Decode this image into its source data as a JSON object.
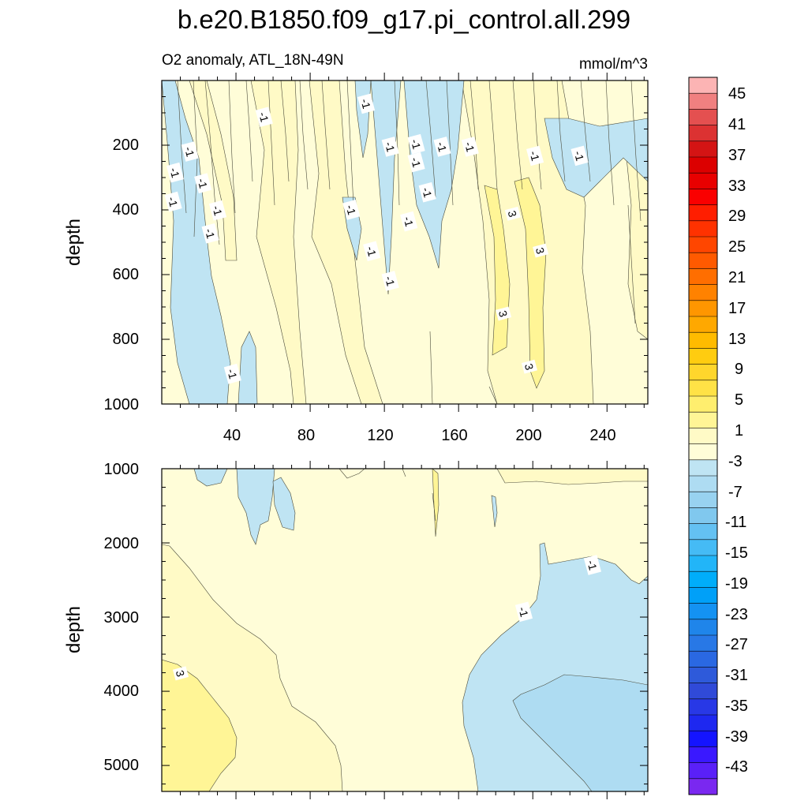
{
  "chart_data": {
    "type": "contour",
    "title": "b.e20.B1850.f09_g17.pi_control.all.299",
    "subtitle": "O2 anomaly, ATL_18N-49N",
    "units": "mmol/m^3",
    "panels": [
      {
        "name": "upper",
        "ylabel": "depth",
        "xlim": [
          0,
          262
        ],
        "ylim": [
          0,
          1000
        ],
        "y_inverted": true,
        "xticks": [
          "40",
          "80",
          "120",
          "160",
          "200",
          "240"
        ],
        "yticks": [
          "200",
          "400",
          "600",
          "800",
          "1000"
        ],
        "contour_labels": [
          {
            "text": "-1",
            "x": 55,
            "y": 113
          },
          {
            "text": "-1",
            "x": 110,
            "y": 72
          },
          {
            "text": "-1",
            "x": 15,
            "y": 220
          },
          {
            "text": "-1",
            "x": 7,
            "y": 285
          },
          {
            "text": "-1",
            "x": 22,
            "y": 318
          },
          {
            "text": "-1",
            "x": 6,
            "y": 375
          },
          {
            "text": "-1",
            "x": 30,
            "y": 402
          },
          {
            "text": "-1",
            "x": 26,
            "y": 473
          },
          {
            "text": "-1",
            "x": 123,
            "y": 205
          },
          {
            "text": "-1",
            "x": 137,
            "y": 197
          },
          {
            "text": "-1",
            "x": 137,
            "y": 253
          },
          {
            "text": "-1",
            "x": 151,
            "y": 205
          },
          {
            "text": "-1",
            "x": 166,
            "y": 205
          },
          {
            "text": "-1",
            "x": 201,
            "y": 233
          },
          {
            "text": "-1",
            "x": 225,
            "y": 233
          },
          {
            "text": "-1",
            "x": 143,
            "y": 346
          },
          {
            "text": "-1",
            "x": 102,
            "y": 400
          },
          {
            "text": "-1",
            "x": 133,
            "y": 436
          },
          {
            "text": "-1",
            "x": 113,
            "y": 528
          },
          {
            "text": "-1",
            "x": 123,
            "y": 620
          },
          {
            "text": "-1",
            "x": 38,
            "y": 907
          },
          {
            "text": "3",
            "x": 189,
            "y": 412
          },
          {
            "text": "3",
            "x": 204,
            "y": 526
          },
          {
            "text": "3",
            "x": 184,
            "y": 721
          },
          {
            "text": "3",
            "x": 198,
            "y": 885
          }
        ]
      },
      {
        "name": "lower",
        "ylabel": "depth",
        "xlim": [
          0,
          262
        ],
        "ylim": [
          1000,
          5350
        ],
        "y_inverted": true,
        "xticks": [],
        "yticks": [
          "1000",
          "2000",
          "3000",
          "4000",
          "5000"
        ],
        "contour_labels": [
          {
            "text": "3",
            "x": 10,
            "y": 3760
          },
          {
            "text": "-1",
            "x": 195,
            "y": 2930
          },
          {
            "text": "-1",
            "x": 232,
            "y": 2300
          }
        ]
      }
    ],
    "colorbar": {
      "tick_labels": [
        "45",
        "41",
        "37",
        "33",
        "29",
        "25",
        "21",
        "17",
        "13",
        "9",
        "5",
        "1",
        "-3",
        "-7",
        "-11",
        "-15",
        "-19",
        "-23",
        "-27",
        "-31",
        "-35",
        "-39",
        "-43"
      ],
      "colors_top_to_bottom": [
        "#fcb4b4",
        "#f08080",
        "#e45050",
        "#dc3232",
        "#d41414",
        "#dc0000",
        "#e80000",
        "#fa0000",
        "#ff1e00",
        "#ff3200",
        "#ff4600",
        "#ff5a00",
        "#ff6e00",
        "#ff8200",
        "#ff9600",
        "#ffa800",
        "#ffbb00",
        "#ffcc10",
        "#ffd62c",
        "#ffe246",
        "#ffee6e",
        "#fff596",
        "#fffac6",
        "#fffdd8",
        "#bfe4f3",
        "#aedcf2",
        "#98d2f0",
        "#80c8ee",
        "#64c1f2",
        "#45bbf5",
        "#22b5f8",
        "#00adfa",
        "#00a0f8",
        "#1492f2",
        "#1f85ea",
        "#2878e6",
        "#2a68e2",
        "#2e5ada",
        "#304ad8",
        "#2838e6",
        "#1e28f0",
        "#1414ff",
        "#3a18ff",
        "#5a20f8",
        "#7a28f0"
      ]
    }
  }
}
